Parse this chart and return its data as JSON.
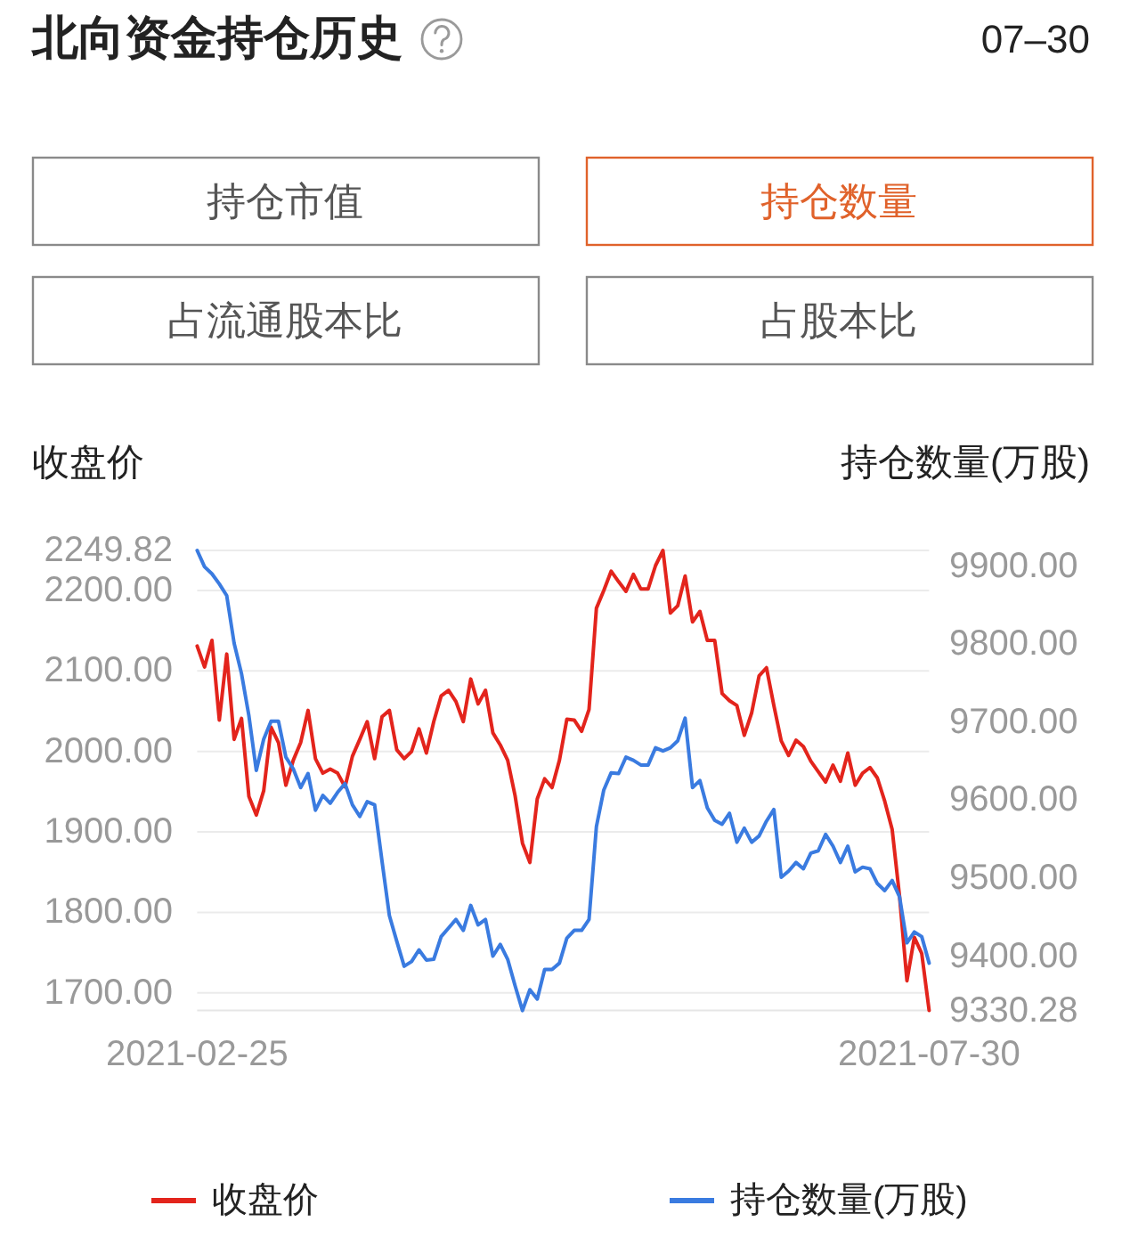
{
  "chart_data": {
    "type": "line",
    "title": "北向资金持仓历史",
    "subtitle": "07–30",
    "annotations": [
      "持仓市值",
      "持仓数量",
      "占流通股本比",
      "占股本比"
    ],
    "ylabel": "收盘价",
    "y2label": "持仓数量(万股)",
    "categories": [
      "2021-02-25",
      null,
      null,
      null,
      null,
      null,
      null,
      null,
      null,
      null,
      null,
      null,
      null,
      null,
      null,
      null,
      null,
      null,
      null,
      null,
      null,
      null,
      null,
      null,
      null,
      null,
      null,
      null,
      null,
      null,
      null,
      null,
      null,
      null,
      null,
      null,
      null,
      null,
      null,
      null,
      null,
      null,
      null,
      null,
      null,
      null,
      null,
      null,
      null,
      null,
      null,
      null,
      null,
      null,
      null,
      null,
      null,
      null,
      null,
      null,
      null,
      null,
      null,
      null,
      null,
      null,
      null,
      null,
      null,
      null,
      null,
      null,
      null,
      null,
      null,
      null,
      null,
      null,
      null,
      null,
      null,
      null,
      null,
      null,
      null,
      null,
      null,
      null,
      null,
      null,
      null,
      null,
      null,
      null,
      null,
      null,
      null,
      null,
      null,
      "2021-07-30"
    ],
    "series": [
      {
        "name": "收盘价",
        "color": "#e3241c",
        "values": [
          2131,
          2105,
          2138,
          2039,
          2121,
          2015,
          2041,
          1944,
          1921,
          1951,
          2030,
          2011,
          1958,
          1989,
          2011,
          2051,
          1991,
          1973,
          1978,
          1973,
          1956,
          1994,
          2015,
          2037,
          1991,
          2043,
          2051,
          2002,
          1991,
          2000,
          2028,
          1998,
          2037,
          2069,
          2076,
          2062,
          2037,
          2090,
          2059,
          2076,
          2023,
          2008,
          1989,
          1945,
          1886,
          1862,
          1941,
          1966,
          1955,
          1989,
          2040,
          2039,
          2025,
          2052,
          2178,
          2200,
          2224,
          2211,
          2199,
          2220,
          2202,
          2202,
          2231,
          2249.82,
          2172,
          2181,
          2218,
          2161,
          2174,
          2138,
          2138,
          2072,
          2063,
          2057,
          2020,
          2048,
          2094,
          2104,
          2057,
          2013,
          1995,
          2014,
          2006,
          1988,
          1975,
          1962,
          1983,
          1963,
          1998,
          1958,
          1973,
          1980,
          1967,
          1938,
          1903,
          1820,
          1715,
          1769,
          1749,
          1678
        ]
      },
      {
        "name": "持仓数量(万股)",
        "color": "#3a7be0",
        "axis": "y2",
        "values": [
          9920,
          9899,
          9890,
          9877,
          9862,
          9801,
          9762,
          9708,
          9638,
          9678,
          9701,
          9701,
          9655,
          9640,
          9616,
          9634,
          9587,
          9606,
          9596,
          9610,
          9621,
          9594,
          9579,
          9598,
          9594,
          9522,
          9452,
          9419,
          9387,
          9393,
          9408,
          9395,
          9396,
          9425,
          9436,
          9447,
          9433,
          9465,
          9440,
          9447,
          9400,
          9415,
          9396,
          9362,
          9330.28,
          9357,
          9345,
          9383,
          9383,
          9391,
          9423,
          9433,
          9433,
          9447,
          9566,
          9613,
          9635,
          9634,
          9655,
          9651,
          9645,
          9645,
          9667,
          9663,
          9667,
          9676,
          9705,
          9616,
          9625,
          9590,
          9574,
          9569,
          9583,
          9546,
          9564,
          9546,
          9554,
          9573,
          9588,
          9501,
          9509,
          9520,
          9512,
          9532,
          9535,
          9556,
          9541,
          9520,
          9541,
          9508,
          9514,
          9512,
          9493,
          9484,
          9497,
          9476,
          9417,
          9431,
          9425,
          9391
        ]
      }
    ],
    "ylim": [
      1678,
      2249.82
    ],
    "yticks": [
      {
        "value": 1700,
        "label": "1700.00"
      },
      {
        "value": 1800,
        "label": "1800.00"
      },
      {
        "value": 1900,
        "label": "1900.00"
      },
      {
        "value": 2000,
        "label": "2000.00"
      },
      {
        "value": 2100,
        "label": "2100.00"
      },
      {
        "value": 2200,
        "label": "2200.00"
      },
      2249.82
    ],
    "y2lim": [
      9330.28,
      9920
    ],
    "y2ticks": [
      9330.28,
      {
        "value": 9400,
        "label": "9400.00"
      },
      {
        "value": 9500,
        "label": "9500.00"
      },
      {
        "value": 9600,
        "label": "9600.00"
      },
      {
        "value": 9700,
        "label": "9700.00"
      },
      {
        "value": 9800,
        "label": "9800.00"
      },
      {
        "value": 9900,
        "label": "9900.00"
      }
    ],
    "grid": "y",
    "legend": "bottom"
  }
}
